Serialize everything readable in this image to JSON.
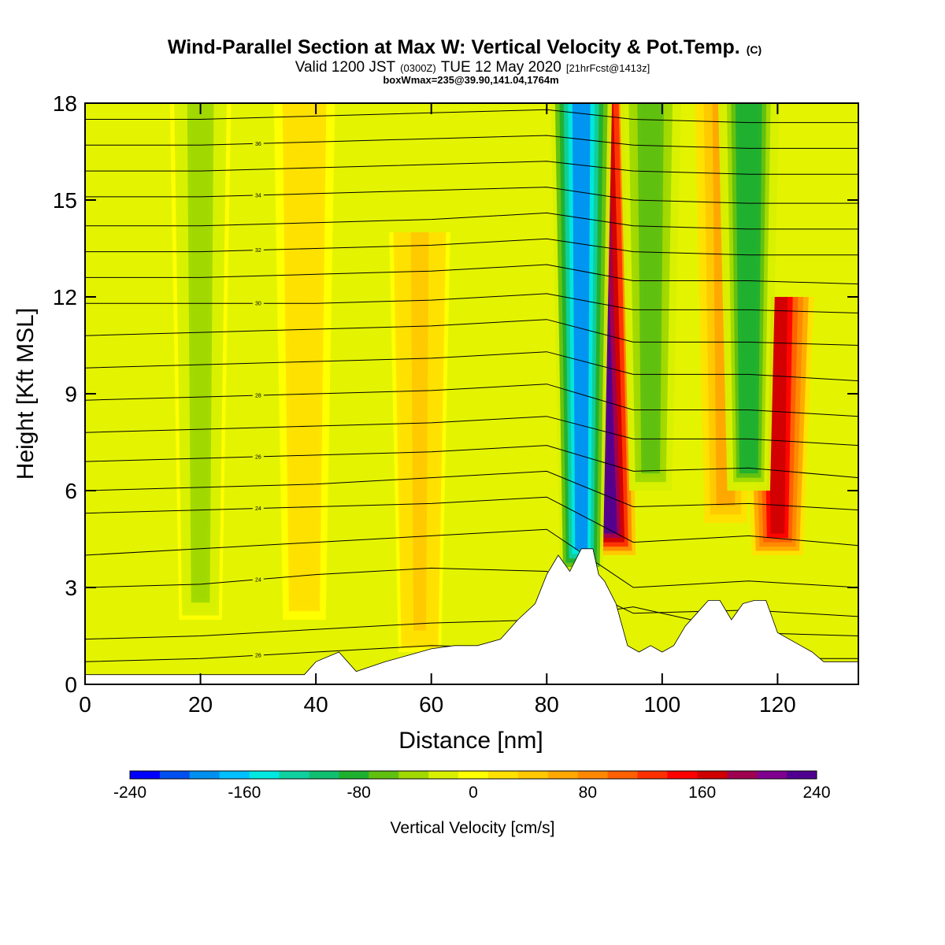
{
  "chart_data": {
    "type": "heatmap",
    "title": "Wind-Parallel Section at Max W: Vertical Velocity & Pot.Temp.",
    "title_mark": "(C)",
    "subtitle_parts": [
      "Valid 1200 JST",
      "(0300Z)",
      "TUE 12 May 2020",
      "[21hrFcst@1413z]"
    ],
    "subtitle2": "boxWmax=235@39.90,141.04,1764m",
    "xlabel": "Distance [nm]",
    "ylabel": "Height [Kft MSL]",
    "xlim": [
      0,
      134
    ],
    "ylim": [
      0,
      18
    ],
    "xticks": [
      0,
      20,
      40,
      60,
      80,
      100,
      120
    ],
    "yticks": [
      0,
      3,
      6,
      9,
      12,
      15,
      18
    ],
    "colorbar": {
      "label": "Vertical Velocity [cm/s]",
      "ticks": [
        -240,
        -160,
        -80,
        0,
        80,
        160,
        240
      ],
      "range": [
        -240,
        240
      ],
      "colors": [
        "#0000ff",
        "#0050f0",
        "#0090f0",
        "#00c0ff",
        "#00e8e0",
        "#10d0a0",
        "#10c070",
        "#20b030",
        "#60c010",
        "#a0d800",
        "#d8f000",
        "#ffff00",
        "#ffe000",
        "#ffc800",
        "#ffa800",
        "#ff8800",
        "#ff6000",
        "#ff3000",
        "#ff0000",
        "#d00000",
        "#a00050",
        "#800090",
        "#500090"
      ]
    },
    "velocity_features": [
      {
        "kind": "updraft",
        "x": 91,
        "z_top": 18,
        "z_bottom": 4,
        "peak": 235
      },
      {
        "kind": "downdraft",
        "x": 86,
        "z_top": 18,
        "z_bottom": 3.5,
        "peak": -180
      },
      {
        "kind": "updraft",
        "x": 120,
        "z_top": 12,
        "z_bottom": 4,
        "peak": 165
      },
      {
        "kind": "updraft",
        "x": 111,
        "z_top": 18,
        "z_bottom": 5,
        "peak": 70
      },
      {
        "kind": "downdraft",
        "x": 115,
        "z_top": 18,
        "z_bottom": 6,
        "peak": -90
      },
      {
        "kind": "downdraft",
        "x": 98,
        "z_top": 18,
        "z_bottom": 6,
        "peak": -70
      },
      {
        "kind": "downdraft",
        "x": 20,
        "z_top": 18,
        "z_bottom": 2,
        "peak": -45
      },
      {
        "kind": "updraft",
        "x": 38,
        "z_top": 18,
        "z_bottom": 2,
        "peak": 30
      },
      {
        "kind": "updraft",
        "x": 58,
        "z_top": 14,
        "z_bottom": 1,
        "peak": 35
      }
    ],
    "terrain_kft": {
      "x": [
        0,
        38,
        40,
        44,
        47,
        52,
        56,
        60,
        64,
        68,
        72,
        75,
        78,
        80,
        82,
        84,
        86,
        88,
        89,
        90,
        92,
        94,
        96,
        98,
        100,
        102,
        104,
        106,
        108,
        110,
        112,
        114,
        116,
        118,
        120,
        124,
        126,
        128,
        134
      ],
      "z": [
        0.3,
        0.3,
        0.7,
        1.0,
        0.4,
        0.7,
        0.9,
        1.1,
        1.2,
        1.2,
        1.4,
        2.0,
        2.5,
        3.4,
        4.0,
        3.5,
        4.2,
        4.2,
        3.4,
        3.2,
        2.5,
        1.2,
        1.0,
        1.2,
        1.0,
        1.2,
        1.8,
        2.2,
        2.6,
        2.6,
        2.0,
        2.5,
        2.6,
        2.6,
        1.6,
        1.2,
        1.0,
        0.7,
        0.7
      ]
    },
    "theta_contours": [
      {
        "label": "26",
        "z": [
          0.7,
          0.8,
          1.0,
          1.2,
          1.1,
          0.9,
          0.8,
          0.8
        ]
      },
      {
        "label": "",
        "z": [
          1.4,
          1.5,
          1.7,
          1.9,
          2.0,
          2.4,
          1.6,
          1.5
        ]
      },
      {
        "label": "24",
        "z": [
          3.0,
          3.1,
          3.4,
          3.6,
          3.5,
          2.2,
          2.3,
          2.1
        ]
      },
      {
        "label": "",
        "z": [
          4.0,
          4.2,
          4.4,
          4.6,
          4.8,
          3.0,
          3.2,
          3.0
        ]
      },
      {
        "label": "24",
        "z": [
          5.3,
          5.4,
          5.5,
          5.6,
          5.8,
          4.4,
          4.6,
          4.3
        ]
      },
      {
        "label": "",
        "z": [
          6.0,
          6.1,
          6.2,
          6.4,
          6.6,
          5.5,
          5.6,
          5.4
        ]
      },
      {
        "label": "26",
        "z": [
          6.9,
          7.0,
          7.1,
          7.2,
          7.4,
          6.6,
          6.7,
          6.4
        ]
      },
      {
        "label": "",
        "z": [
          7.8,
          7.9,
          8.0,
          8.1,
          8.3,
          7.6,
          7.6,
          7.4
        ]
      },
      {
        "label": "28",
        "z": [
          8.8,
          8.9,
          9.0,
          9.1,
          9.3,
          8.5,
          8.5,
          8.3
        ]
      },
      {
        "label": "",
        "z": [
          9.8,
          9.9,
          10.0,
          10.1,
          10.3,
          9.6,
          9.6,
          9.4
        ]
      },
      {
        "label": "",
        "z": [
          10.8,
          10.9,
          11.0,
          11.1,
          11.3,
          10.6,
          10.6,
          10.5
        ]
      },
      {
        "label": "30",
        "z": [
          11.8,
          11.8,
          11.8,
          11.9,
          12.1,
          11.6,
          11.6,
          11.5
        ]
      },
      {
        "label": "",
        "z": [
          12.6,
          12.6,
          12.7,
          12.8,
          13.0,
          12.5,
          12.5,
          12.4
        ]
      },
      {
        "label": "32",
        "z": [
          13.4,
          13.4,
          13.5,
          13.6,
          13.8,
          13.4,
          13.3,
          13.3
        ]
      },
      {
        "label": "",
        "z": [
          14.2,
          14.2,
          14.3,
          14.4,
          14.6,
          14.2,
          14.1,
          14.1
        ]
      },
      {
        "label": "34",
        "z": [
          15.1,
          15.1,
          15.2,
          15.3,
          15.4,
          15.0,
          14.9,
          14.9
        ]
      },
      {
        "label": "",
        "z": [
          15.9,
          15.9,
          16.0,
          16.1,
          16.2,
          15.9,
          15.8,
          15.8
        ]
      },
      {
        "label": "36",
        "z": [
          16.7,
          16.7,
          16.8,
          16.9,
          17.0,
          16.7,
          16.6,
          16.6
        ]
      },
      {
        "label": "",
        "z": [
          17.5,
          17.5,
          17.6,
          17.7,
          17.8,
          17.5,
          17.4,
          17.4
        ]
      }
    ],
    "theta_contour_x": [
      0,
      20,
      40,
      60,
      80,
      95,
      115,
      134
    ],
    "grid": false,
    "legend": "bottom"
  }
}
